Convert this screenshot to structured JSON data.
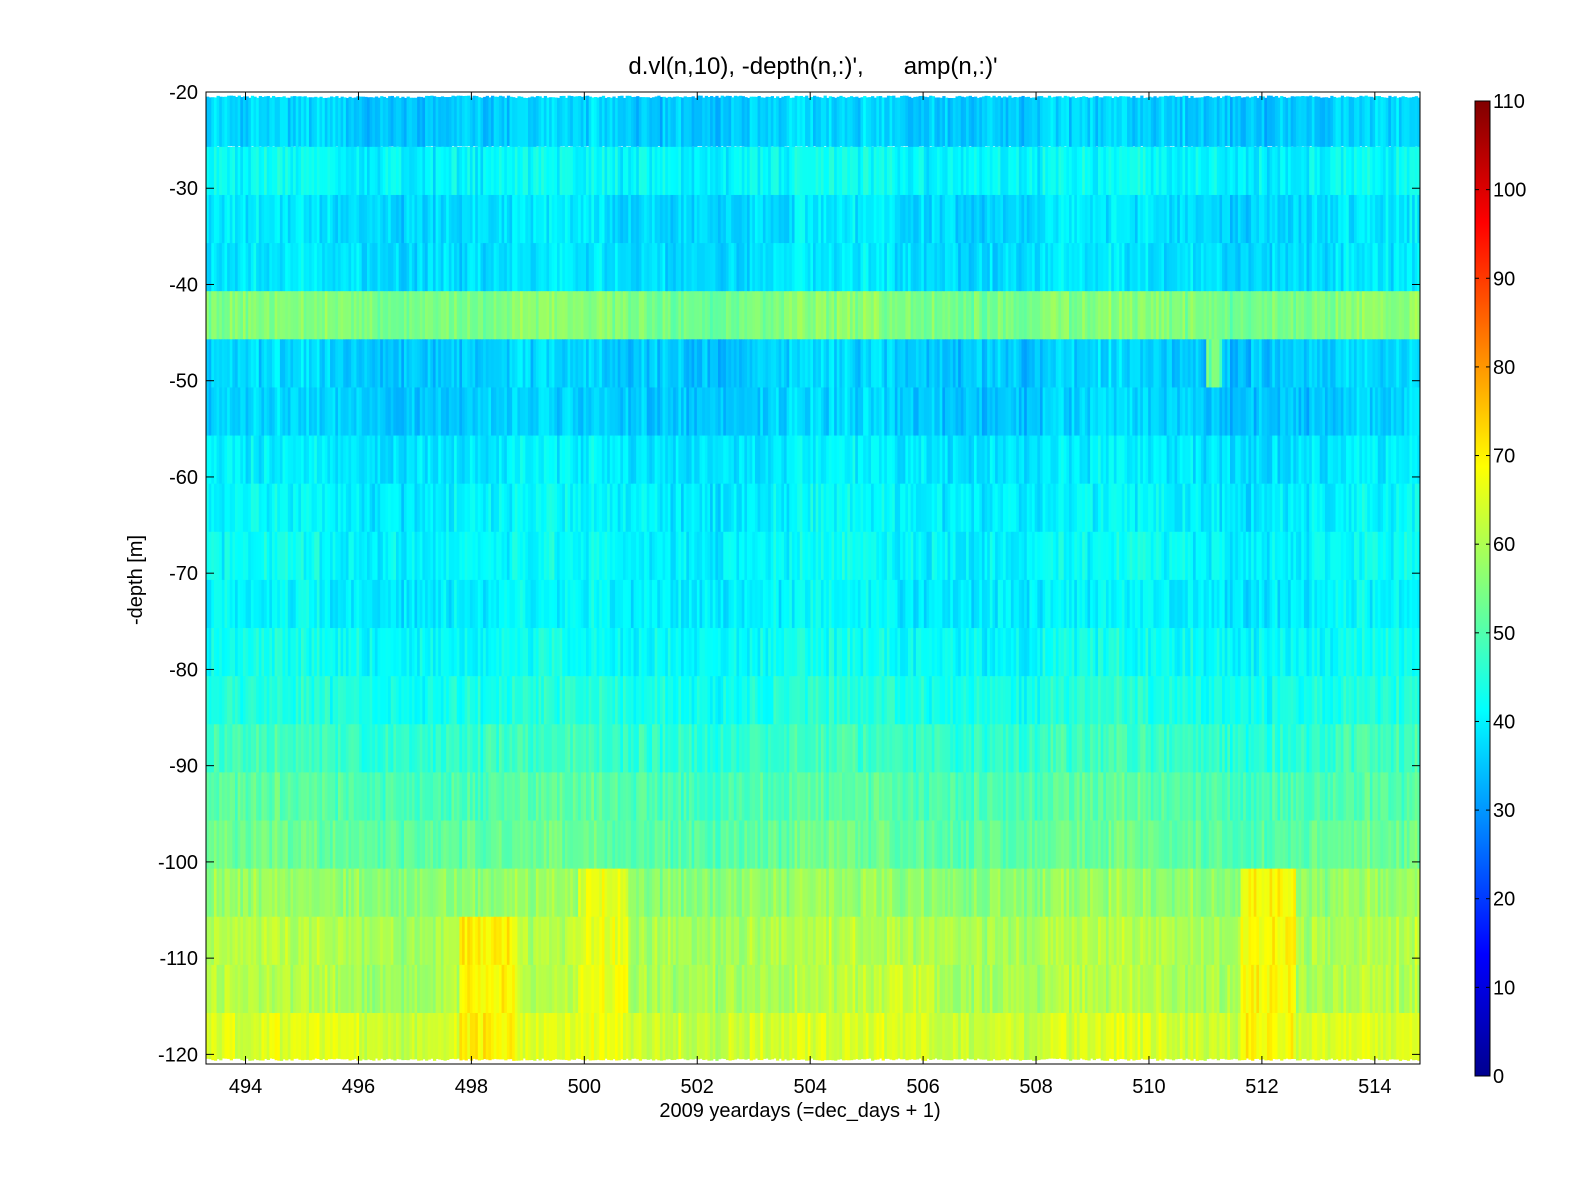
{
  "chart_data": {
    "type": "heatmap",
    "title": "d.vl(n,10), -depth(n,:)',      amp(n,:)'",
    "xlabel": "2009 yeardays (=dec_days + 1)",
    "ylabel": "-depth [m]",
    "xlim": [
      493.3,
      514.8
    ],
    "ylim": [
      -121,
      -20
    ],
    "x_ticks": [
      494,
      496,
      498,
      500,
      502,
      504,
      506,
      508,
      510,
      512,
      514
    ],
    "y_ticks": [
      -20,
      -30,
      -40,
      -50,
      -60,
      -70,
      -80,
      -90,
      -100,
      -110,
      -120
    ],
    "colorbar": {
      "colormap": "jet",
      "clim": [
        0,
        110
      ],
      "ticks": [
        0,
        10,
        20,
        30,
        40,
        50,
        60,
        70,
        80,
        90,
        100,
        110
      ]
    },
    "x_range": [
      493.3,
      514.8
    ],
    "bins": [
      {
        "top": -20.5,
        "bottom": -25.7,
        "base": 36
      },
      {
        "top": -25.7,
        "bottom": -30.7,
        "base": 41
      },
      {
        "top": -30.7,
        "bottom": -35.7,
        "base": 38
      },
      {
        "top": -35.7,
        "bottom": -40.7,
        "base": 38
      },
      {
        "top": -40.7,
        "bottom": -45.7,
        "base": 55
      },
      {
        "top": -45.7,
        "bottom": -50.7,
        "base": 36
      },
      {
        "top": -50.7,
        "bottom": -55.7,
        "base": 36
      },
      {
        "top": -55.7,
        "bottom": -60.7,
        "base": 39
      },
      {
        "top": -60.7,
        "bottom": -65.7,
        "base": 40
      },
      {
        "top": -65.7,
        "bottom": -70.7,
        "base": 41
      },
      {
        "top": -70.7,
        "bottom": -75.7,
        "base": 40
      },
      {
        "top": -75.7,
        "bottom": -80.7,
        "base": 42
      },
      {
        "top": -80.7,
        "bottom": -85.7,
        "base": 44
      },
      {
        "top": -85.7,
        "bottom": -90.7,
        "base": 47
      },
      {
        "top": -90.7,
        "bottom": -95.7,
        "base": 50
      },
      {
        "top": -95.7,
        "bottom": -100.7,
        "base": 52
      },
      {
        "top": -100.7,
        "bottom": -105.7,
        "base": 57
      },
      {
        "top": -105.7,
        "bottom": -110.7,
        "base": 60
      },
      {
        "top": -110.7,
        "bottom": -115.7,
        "base": 60
      },
      {
        "top": -115.7,
        "bottom": -120.5,
        "base": 64
      }
    ],
    "hotspots": [
      {
        "x0": 497.8,
        "x1": 498.8,
        "y0": -105,
        "y1": -121,
        "value": 74
      },
      {
        "x0": 499.9,
        "x1": 500.8,
        "y0": -100,
        "y1": -121,
        "value": 70
      },
      {
        "x0": 511.6,
        "x1": 512.6,
        "y0": -100,
        "y1": -121,
        "value": 73
      },
      {
        "x0": 494.4,
        "x1": 496.0,
        "y0": -115,
        "y1": -121,
        "value": 68
      },
      {
        "x0": 505.3,
        "x1": 506.2,
        "y0": -110,
        "y1": -121,
        "value": 67
      },
      {
        "x0": 512.8,
        "x1": 514.0,
        "y0": -115,
        "y1": -121,
        "value": 68
      },
      {
        "x0": 511.0,
        "x1": 511.3,
        "y0": -45,
        "y1": -52,
        "value": 56
      }
    ]
  }
}
